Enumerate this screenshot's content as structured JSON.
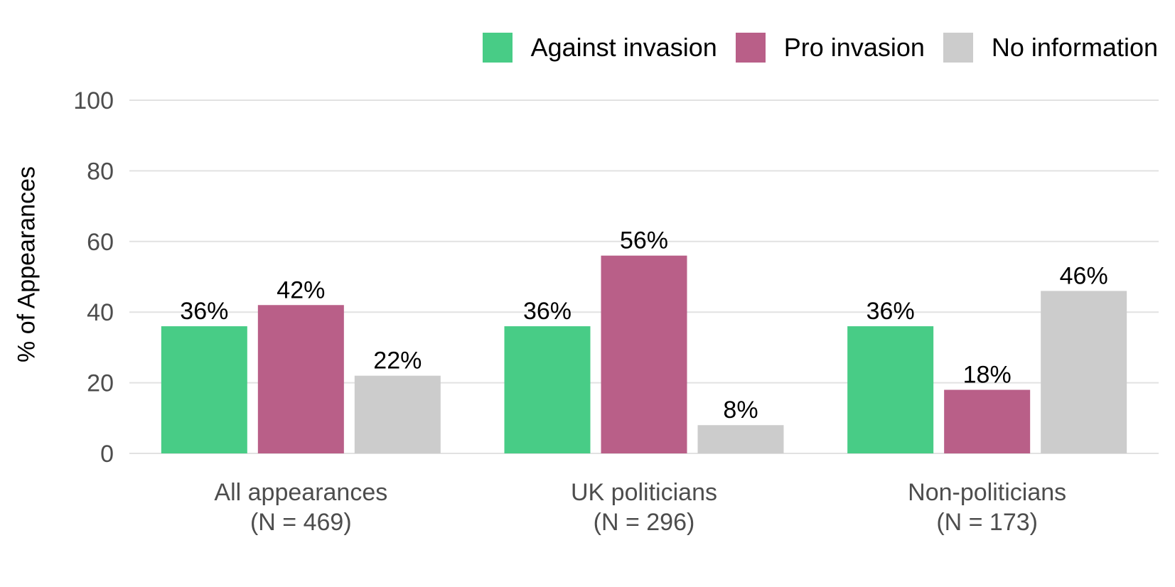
{
  "chart_data": {
    "type": "bar",
    "title": "",
    "xlabel": "",
    "ylabel": "% of Appearances",
    "ylim": [
      0,
      100
    ],
    "yticks": [
      0,
      20,
      40,
      60,
      80,
      100
    ],
    "grid": true,
    "legend_position": "top-right",
    "categories": [
      {
        "line1": "All appearances",
        "line2": "(N = 469)"
      },
      {
        "line1": "UK politicians",
        "line2": "(N = 296)"
      },
      {
        "line1": "Non-politicians",
        "line2": "(N = 173)"
      }
    ],
    "series": [
      {
        "name": "Against invasion",
        "color": "#48cc86",
        "values": [
          36,
          36,
          36
        ],
        "labels": [
          "36%",
          "36%",
          "36%"
        ]
      },
      {
        "name": "Pro invasion",
        "color": "#b95f88",
        "values": [
          42,
          56,
          18
        ],
        "labels": [
          "42%",
          "56%",
          "18%"
        ]
      },
      {
        "name": "No information",
        "color": "#cccccc",
        "values": [
          22,
          8,
          46
        ],
        "labels": [
          "22%",
          "8%",
          "46%"
        ]
      }
    ]
  }
}
